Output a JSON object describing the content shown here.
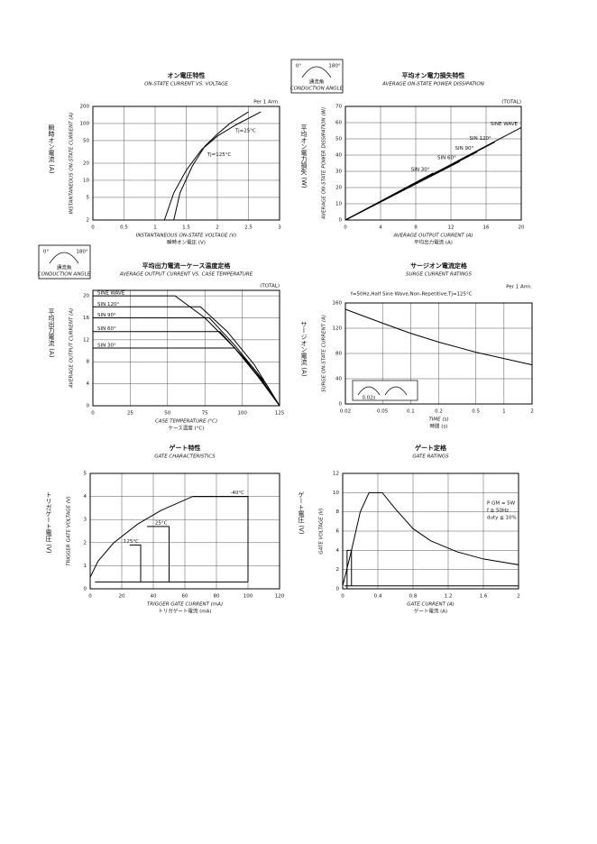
{
  "chart_data": [
    {
      "type": "line",
      "title": "オン電圧特性",
      "subtitle": "ON-STATE CURRENT VS. VOLTAGE",
      "note": "Per 1 Arm.",
      "ylabel_ja": "瞬時オン電流 (A)",
      "ylabel": "INSTANTANEOUS ON-STATE CURRENT (A)",
      "xlabel": "INSTANTANEOUS ON-STATE VOLTAGE (V)",
      "xlabel_ja": "瞬時オン電圧 (V)",
      "xlim": [
        0,
        3
      ],
      "xticks": [
        0,
        0.5,
        1,
        1.5,
        2,
        2.5,
        3
      ],
      "ylim": [
        2,
        200
      ],
      "yticks": [
        2,
        5,
        10,
        20,
        50,
        100,
        200
      ],
      "yscale": "log",
      "grid": true,
      "series": [
        {
          "name": "Tj=25°C",
          "color": "#000000",
          "x": [
            1.3,
            1.4,
            1.6,
            1.8,
            2.0,
            2.2,
            2.5
          ],
          "values": [
            2,
            6,
            18,
            40,
            65,
            100,
            160
          ]
        },
        {
          "name": "Tj=125°C",
          "color": "#000000",
          "x": [
            1.15,
            1.3,
            1.5,
            1.75,
            2.0,
            2.3,
            2.7
          ],
          "values": [
            2,
            6,
            15,
            35,
            60,
            95,
            160
          ]
        }
      ]
    },
    {
      "type": "line",
      "title": "平均オン電力損失特性",
      "subtitle": "AVERAGE ON-STATE POWER DISSIPATION",
      "note": "(TOTAL)",
      "conduction_icon": {
        "start": "0°",
        "end": "180°",
        "label_ja": "通流角",
        "label": "CONDUCTION ANGLE"
      },
      "ylabel_ja": "平均オン電力損失 (W)",
      "ylabel": "AVERAGE ON-STATE POWER DISSIPATION (W)",
      "xlabel": "AVERAGE OUTPUT CURRENT (A)",
      "xlabel_ja": "平均出力電流 (A)",
      "xlim": [
        0,
        20
      ],
      "xticks": [
        0,
        4,
        8,
        12,
        16,
        20
      ],
      "ylim": [
        0,
        70
      ],
      "yticks": [
        0,
        10,
        20,
        30,
        40,
        50,
        60,
        70
      ],
      "grid": true,
      "series": [
        {
          "name": "SINE WAVE",
          "color": "#000000",
          "x": [
            0,
            20
          ],
          "values": [
            0,
            57
          ]
        },
        {
          "name": "SIN 120°",
          "color": "#000000",
          "x": [
            0,
            17
          ],
          "values": [
            0,
            48
          ]
        },
        {
          "name": "SIN 90°",
          "color": "#000000",
          "x": [
            0,
            15
          ],
          "values": [
            0,
            42
          ]
        },
        {
          "name": "SIN 60°",
          "color": "#000000",
          "x": [
            0,
            13
          ],
          "values": [
            0,
            36
          ]
        },
        {
          "name": "SIN 30°",
          "color": "#000000",
          "x": [
            0,
            10
          ],
          "values": [
            0,
            29
          ]
        }
      ]
    },
    {
      "type": "line",
      "title": "平均出力電流ーケース温度定格",
      "subtitle": "AVERAGE OUTPUT CURRENT VS. CASE TEMPERATURE",
      "note": "(TOTAL)",
      "conduction_icon": {
        "start": "0°",
        "end": "180°",
        "label_ja": "通流角",
        "label": "CONDUCTION ANGLE"
      },
      "ylabel_ja": "平均出力電流 (A)",
      "ylabel": "AVERAGE OUTPUT CURRENT (A)",
      "xlabel": "CASE TEMPERATURE (°C)",
      "xlabel_ja": "ケース温度 (°C)",
      "xlim": [
        0,
        125
      ],
      "xticks": [
        0,
        25,
        50,
        75,
        100,
        125
      ],
      "ylim": [
        0,
        21
      ],
      "yticks": [
        0,
        4,
        8,
        12,
        16,
        20
      ],
      "grid": true,
      "series": [
        {
          "name": "SINE WAVE",
          "color": "#000000",
          "x": [
            0,
            55,
            75,
            95,
            110,
            125
          ],
          "values": [
            20,
            20,
            16,
            10.5,
            5.5,
            0
          ]
        },
        {
          "name": "SIN 120°",
          "color": "#000000",
          "x": [
            0,
            72,
            90,
            108,
            125
          ],
          "values": [
            18,
            18,
            13.5,
            7.5,
            0
          ]
        },
        {
          "name": "SIN 90°",
          "color": "#000000",
          "x": [
            0,
            78,
            95,
            110,
            125
          ],
          "values": [
            16,
            16,
            11,
            6,
            0
          ]
        },
        {
          "name": "SIN 60°",
          "color": "#000000",
          "x": [
            0,
            85,
            100,
            112,
            125
          ],
          "values": [
            13.5,
            13.5,
            9,
            5,
            0
          ]
        },
        {
          "name": "SIN 30°",
          "color": "#000000",
          "x": [
            0,
            95,
            107,
            116,
            125
          ],
          "values": [
            10.5,
            10.5,
            7,
            4,
            0
          ]
        }
      ]
    },
    {
      "type": "line",
      "title": "サージオン電流定格",
      "subtitle": "SURGE CURRENT RATINGS",
      "note": "Per 1 Arm.",
      "condition": "f=50Hz,Half Sine Wave,Non-Repetitive,Tj=125°C",
      "inset_label": "0.02s",
      "ylabel_ja": "サージオン電流 (A)",
      "ylabel": "SURGE ON-STATE CURRENT (A)",
      "xlabel": "TIME (s)",
      "xlabel_ja": "時間 (s)",
      "xlim": [
        0.02,
        2
      ],
      "xticks": [
        0.02,
        0.05,
        0.1,
        0.2,
        0.5,
        1,
        2
      ],
      "xscale": "log",
      "ylim": [
        0,
        160
      ],
      "yticks": [
        0,
        40,
        80,
        120,
        160
      ],
      "grid": true,
      "series": [
        {
          "color": "#000000",
          "x": [
            0.02,
            0.05,
            0.1,
            0.2,
            0.5,
            1,
            2
          ],
          "values": [
            150,
            128,
            112,
            98,
            82,
            72,
            62
          ]
        }
      ]
    },
    {
      "type": "line",
      "title": "ゲート特性",
      "subtitle": "GATE CHARACTERISTICS",
      "ylabel_ja": "トリガゲート電圧 (V)",
      "ylabel": "TRIGGER GATE VOLTAGE (V)",
      "xlabel": "TRIGGER GATE CURRENT (mA)",
      "xlabel_ja": "トリガゲート電流 (mA)",
      "xlim": [
        0,
        120
      ],
      "xticks": [
        0,
        20,
        40,
        60,
        80,
        100,
        120
      ],
      "ylim": [
        0,
        5
      ],
      "yticks": [
        0,
        1,
        2,
        3,
        4,
        5
      ],
      "grid": true,
      "series": [
        {
          "color": "#000000",
          "x": [
            0,
            5,
            15,
            30,
            45,
            65,
            100
          ],
          "values": [
            0.5,
            1.2,
            2.0,
            2.8,
            3.4,
            4,
            4
          ]
        },
        {
          "name": "-40°C",
          "color": "#000000",
          "x": [
            65,
            100,
            100
          ],
          "values": [
            4,
            4,
            0.3
          ]
        },
        {
          "name": "25°C",
          "color": "#000000",
          "x": [
            36,
            50,
            50
          ],
          "values": [
            2.7,
            2.7,
            0.3
          ]
        },
        {
          "name": "125°C",
          "color": "#000000",
          "x": [
            25,
            32,
            32
          ],
          "values": [
            1.9,
            1.9,
            0.3
          ]
        },
        {
          "color": "#000000",
          "x": [
            3,
            100
          ],
          "values": [
            0.3,
            0.3
          ]
        }
      ]
    },
    {
      "type": "line",
      "title": "ゲート定格",
      "subtitle": "GATE RATINGS",
      "annotations": [
        "P GM = 5W",
        "f ≧ 50Hz",
        "duty ≦ 10%"
      ],
      "ylabel_ja": "ゲート電圧 (V)",
      "ylabel": "GATE VOLTAGE (V)",
      "xlabel": "GATE CURRENT (A)",
      "xlabel_ja": "ゲート電流 (A)",
      "xlim": [
        0,
        2
      ],
      "xticks": [
        0,
        0.4,
        0.8,
        1.2,
        1.6,
        2
      ],
      "ylim": [
        0,
        12
      ],
      "yticks": [
        0,
        2,
        4,
        6,
        8,
        10,
        12
      ],
      "grid": true,
      "series": [
        {
          "color": "#000000",
          "x": [
            0,
            0.1,
            0.2,
            0.3,
            0.45,
            0.6,
            0.8,
            1.0,
            1.3,
            1.6,
            2.0,
            2.0
          ],
          "values": [
            0.3,
            4,
            8,
            10,
            10,
            8.3,
            6.25,
            5,
            3.85,
            3.1,
            2.5,
            0.3
          ]
        },
        {
          "color": "#000000",
          "x": [
            0.05,
            0.05,
            0.1,
            0.1
          ],
          "values": [
            0,
            4,
            4,
            0.3
          ]
        },
        {
          "color": "#000000",
          "x": [
            0.02,
            2
          ],
          "values": [
            0.3,
            0.3
          ]
        }
      ]
    }
  ]
}
